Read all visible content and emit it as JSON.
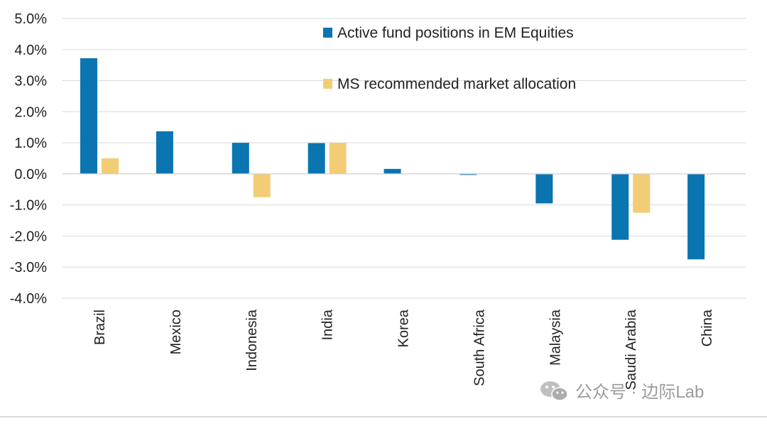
{
  "chart_data": {
    "type": "bar",
    "categories": [
      "Brazil",
      "Mexico",
      "Indonesia",
      "India",
      "Korea",
      "South Africa",
      "Malaysia",
      "Saudi Arabia",
      "China"
    ],
    "series": [
      {
        "name": "Active fund positions in EM Equities",
        "color": "#0a75b0",
        "values": [
          3.72,
          1.37,
          1.0,
          0.99,
          0.16,
          -0.03,
          -0.95,
          -2.12,
          -2.75
        ]
      },
      {
        "name": "MS recommended market allocation",
        "color": "#f2cd76",
        "values": [
          0.5,
          0.0,
          -0.75,
          1.0,
          0.0,
          0.0,
          0.0,
          -1.25,
          0.0
        ]
      }
    ],
    "ylim": [
      -4.0,
      5.0
    ],
    "yticks": [
      5.0,
      4.0,
      3.0,
      2.0,
      1.0,
      0.0,
      -1.0,
      -2.0,
      -3.0,
      -4.0
    ],
    "ytick_labels": [
      "5.0%",
      "4.0%",
      "3.0%",
      "2.0%",
      "1.0%",
      "0.0%",
      "-1.0%",
      "-2.0%",
      "-3.0%",
      "-4.0%"
    ],
    "grid": true,
    "legend_position": "top-center",
    "title": "",
    "xlabel": "",
    "ylabel": ""
  },
  "watermark": {
    "text": "公众号 · 边际Lab",
    "icon": "wechat-icon"
  }
}
